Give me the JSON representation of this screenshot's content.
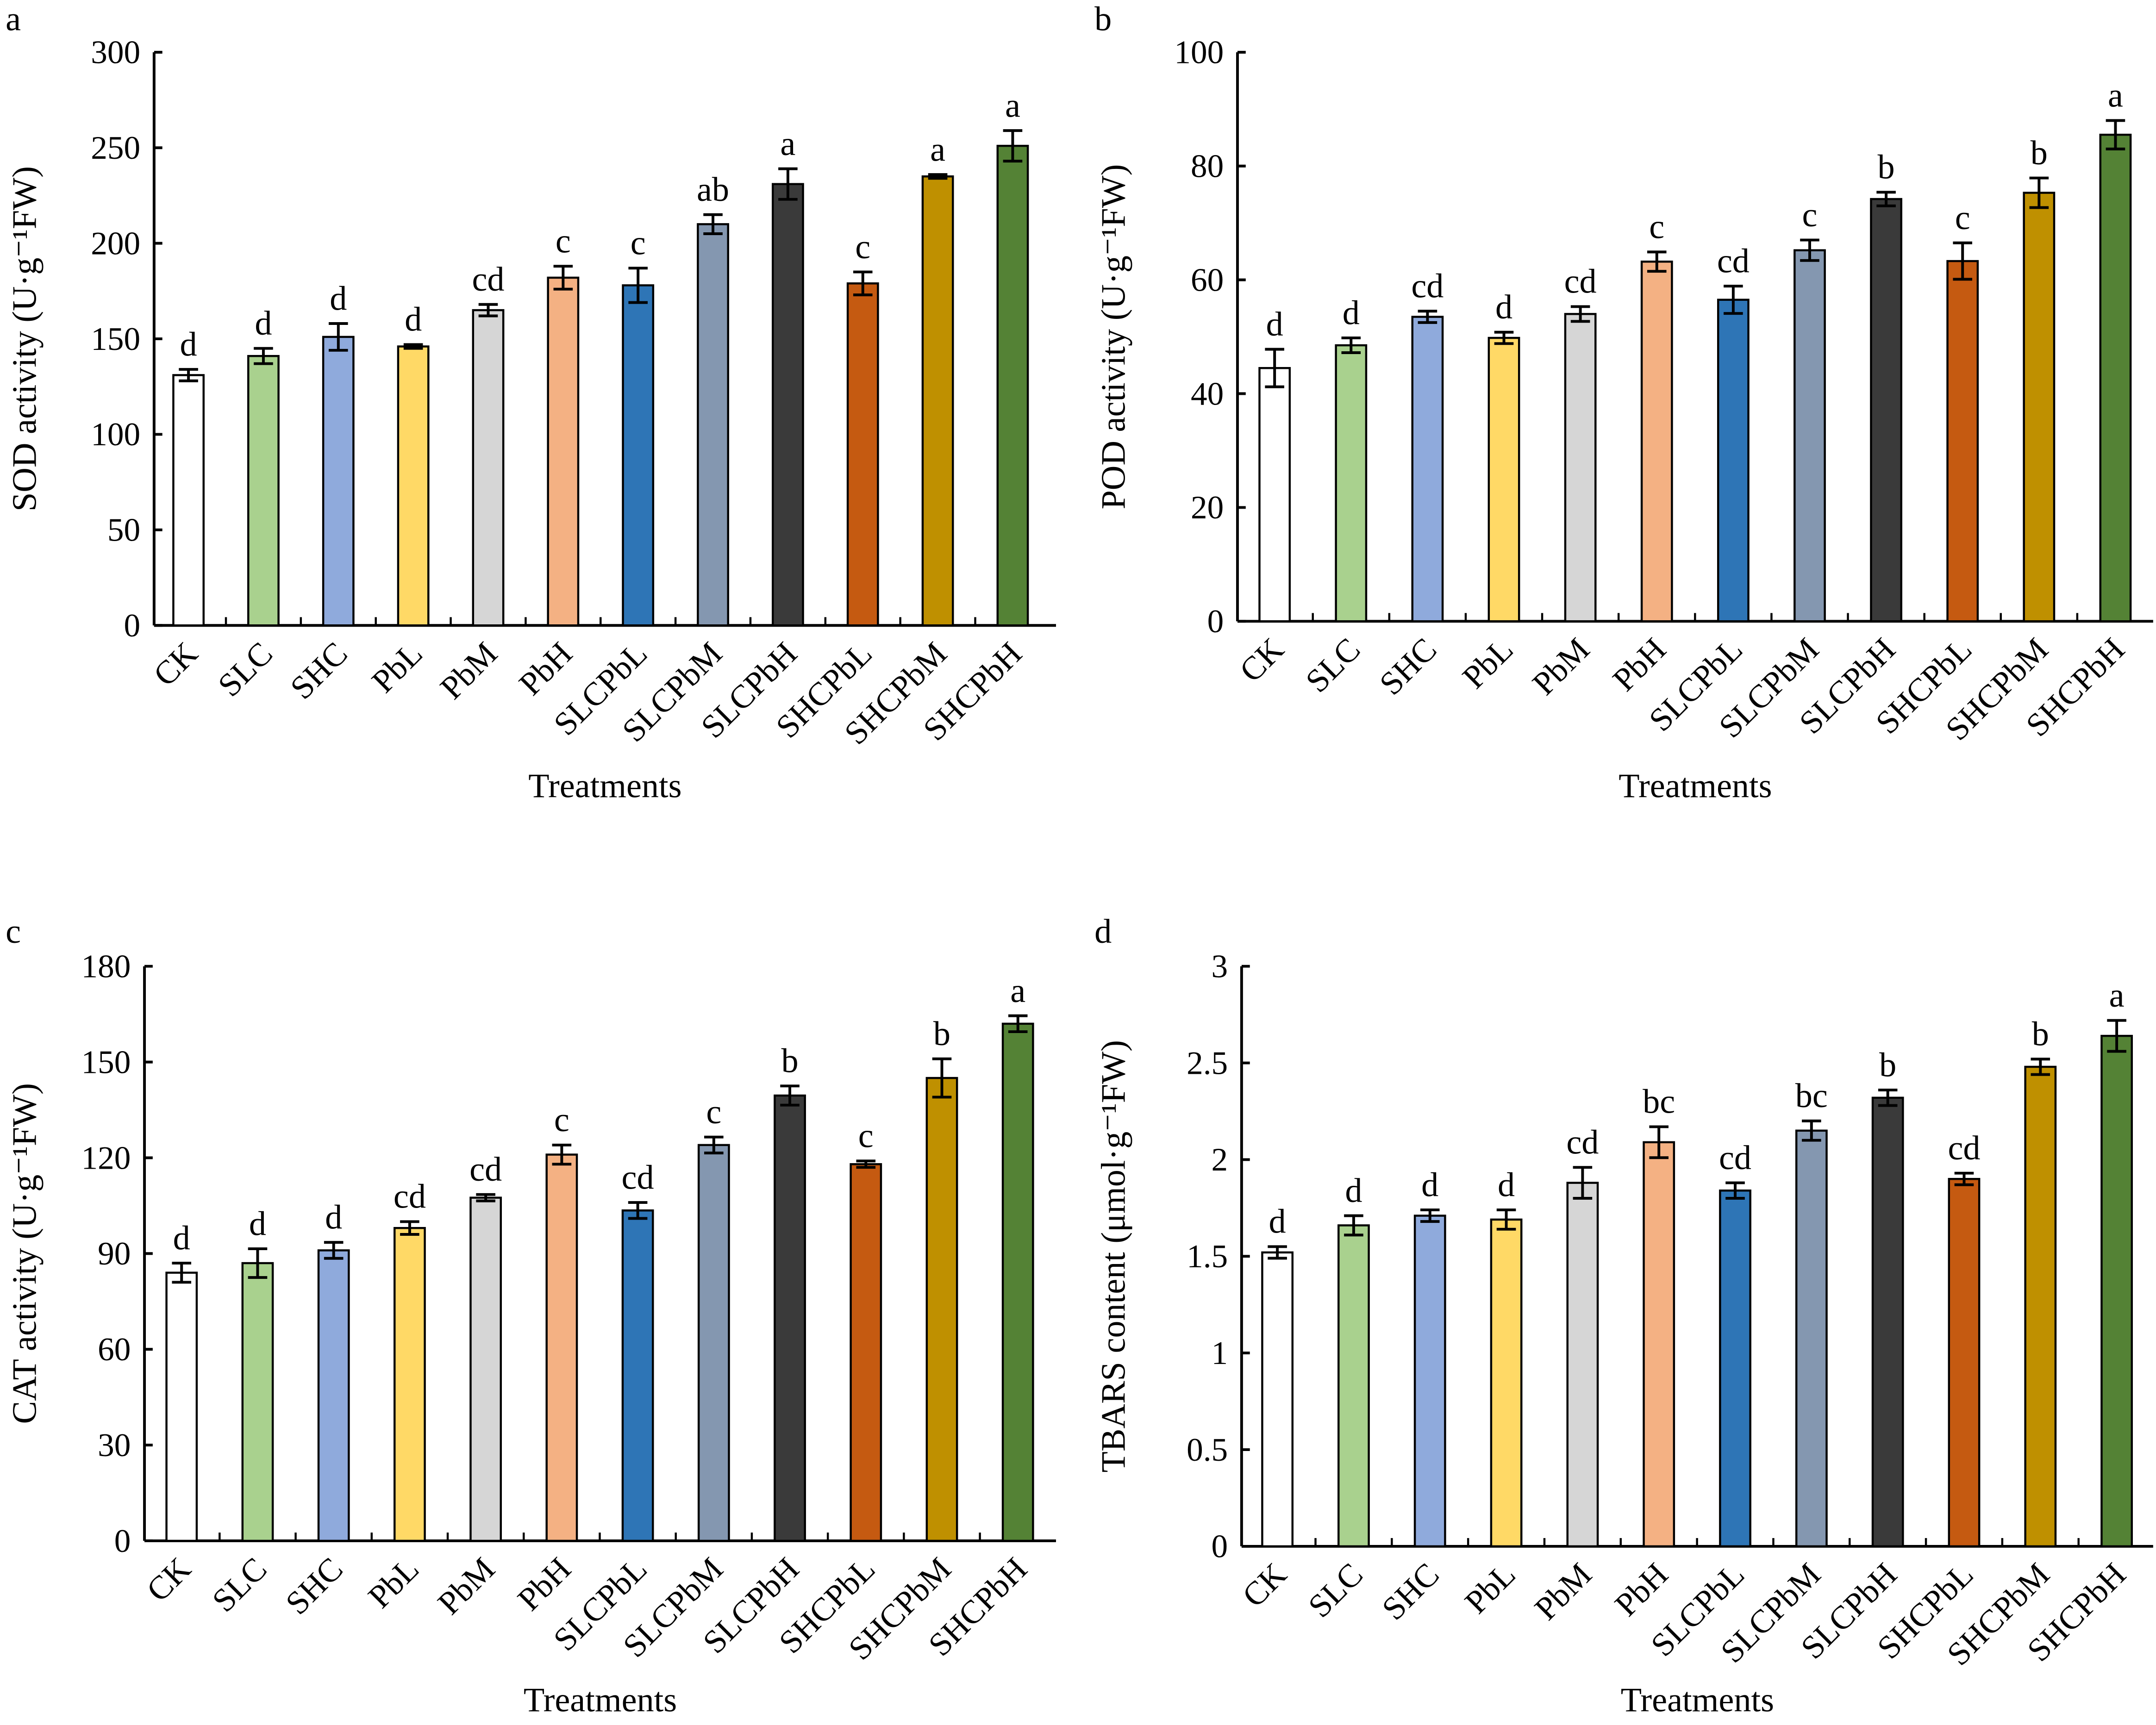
{
  "chart_data": [
    {
      "type": "bar",
      "panel": "a",
      "ylabel": "SOD activity  (U·g⁻¹FW)",
      "xlabel": "Treatments",
      "ylim": [
        0,
        300
      ],
      "yticks": [
        0,
        50,
        100,
        150,
        200,
        250,
        300
      ],
      "categories": [
        "CK",
        "SLC",
        "SHC",
        "PbL",
        "PbM",
        "PbH",
        "SLCPbL",
        "SLCPbM",
        "SLCPbH",
        "SHCPbL",
        "SHCPbM",
        "SHCPbH"
      ],
      "values": [
        131,
        141,
        151,
        146,
        165,
        182,
        178,
        210,
        231,
        179,
        235,
        251
      ],
      "errors": [
        3,
        4,
        7,
        1,
        3,
        6,
        9,
        5,
        8,
        6,
        1,
        8
      ],
      "letters": [
        "d",
        "d",
        "d",
        "d",
        "cd",
        "c",
        "c",
        "ab",
        "a",
        "c",
        "a",
        "a"
      ]
    },
    {
      "type": "bar",
      "panel": "b",
      "ylabel": "POD activity  (U·g⁻¹FW)",
      "xlabel": "Treatments",
      "ylim": [
        0,
        100
      ],
      "yticks": [
        0,
        20,
        40,
        60,
        80,
        100
      ],
      "categories": [
        "CK",
        "SLC",
        "SHC",
        "PbL",
        "PbM",
        "PbH",
        "SLCPbL",
        "SLCPbM",
        "SLCPbH",
        "SHCPbL",
        "SHCPbM",
        "SHCPbH"
      ],
      "values": [
        44.5,
        48.5,
        53.5,
        49.8,
        54,
        63.2,
        56.5,
        65.2,
        74.2,
        63.3,
        75.3,
        85.5
      ],
      "errors": [
        3.3,
        1.3,
        1,
        1,
        1.3,
        1.7,
        2.4,
        1.8,
        1.2,
        3.2,
        2.6,
        2.5
      ],
      "letters": [
        "d",
        "d",
        "cd",
        "d",
        "cd",
        "c",
        "cd",
        "c",
        "b",
        "c",
        "b",
        "a"
      ]
    },
    {
      "type": "bar",
      "panel": "c",
      "ylabel": "CAT activity  (U·g⁻¹FW)",
      "xlabel": "Treatments",
      "ylim": [
        0,
        180
      ],
      "yticks": [
        0,
        30,
        60,
        90,
        120,
        150,
        180
      ],
      "categories": [
        "CK",
        "SLC",
        "SHC",
        "PbL",
        "PbM",
        "PbH",
        "SLCPbL",
        "SLCPbM",
        "SLCPbH",
        "SHCPbL",
        "SHCPbM",
        "SHCPbH"
      ],
      "values": [
        84,
        87,
        91,
        98,
        107.5,
        121,
        103.5,
        124,
        139.5,
        118,
        145,
        162
      ],
      "errors": [
        3,
        4.5,
        2.5,
        2,
        1,
        3,
        2.5,
        2.5,
        3,
        1,
        6,
        2.5
      ],
      "letters": [
        "d",
        "d",
        "d",
        "cd",
        "cd",
        "c",
        "cd",
        "c",
        "b",
        "c",
        "b",
        "a"
      ]
    },
    {
      "type": "bar",
      "panel": "d",
      "ylabel": "TBARS content (μmol·g⁻¹FW)",
      "xlabel": "Treatments",
      "ylim": [
        0,
        3
      ],
      "yticks": [
        0,
        0.5,
        1,
        1.5,
        2,
        2.5,
        3
      ],
      "categories": [
        "CK",
        "SLC",
        "SHC",
        "PbL",
        "PbM",
        "PbH",
        "SLCPbL",
        "SLCPbM",
        "SLCPbH",
        "SHCPbL",
        "SHCPbM",
        "SHCPbH"
      ],
      "values": [
        1.52,
        1.66,
        1.71,
        1.69,
        1.88,
        2.09,
        1.84,
        2.15,
        2.32,
        1.9,
        2.48,
        2.64
      ],
      "errors": [
        0.03,
        0.05,
        0.03,
        0.05,
        0.08,
        0.08,
        0.04,
        0.05,
        0.04,
        0.03,
        0.04,
        0.08
      ],
      "letters": [
        "d",
        "d",
        "d",
        "d",
        "cd",
        "bc",
        "cd",
        "bc",
        "b",
        "cd",
        "b",
        "a"
      ]
    }
  ],
  "colors": [
    "#ffffff",
    "#a9d18e",
    "#8faadc",
    "#ffd966",
    "#d6d6d6",
    "#f4b183",
    "#2e75b6",
    "#8497b0",
    "#3a3a3a",
    "#c55a11",
    "#bf9000",
    "#548235"
  ]
}
